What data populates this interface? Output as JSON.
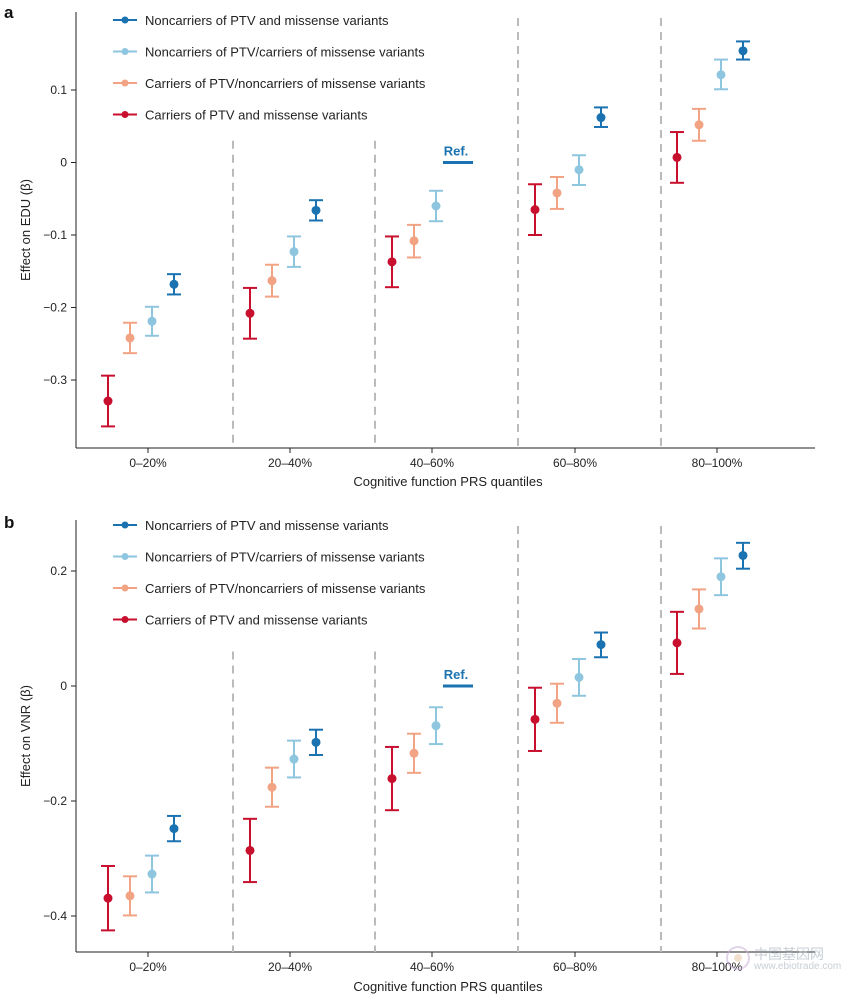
{
  "colors": {
    "noncarriers_both": "#1a73b0",
    "noncarriers_ptv_carriers_missense": "#8ec6e0",
    "carriers_ptv_noncarriers_missense": "#f2a383",
    "carriers_both": "#c8102e",
    "divider": "#bbbbbb",
    "axis": "#222222"
  },
  "watermark": {
    "cn": "中国基因网",
    "en": "www.ebiotrade.com",
    "logo": "logo-icon"
  },
  "chart_data": [
    {
      "panel_label": "a",
      "type": "scatter",
      "subtype": "dot-with-errorbars",
      "xlabel": "Cognitive function PRS quantiles",
      "ylabel": "Effect on EDU (β)",
      "categories": [
        "0–20%",
        "20–40%",
        "40–60%",
        "60–80%",
        "80–100%"
      ],
      "yticks": [
        0.1,
        0,
        -0.1,
        -0.2,
        -0.3
      ],
      "ytick_labels": [
        "0.1",
        "0",
        "−0.1",
        "−0.2",
        "−0.3"
      ],
      "ylim": [
        -0.39,
        0.19
      ],
      "grid": false,
      "legend_position": "top-left",
      "reference": {
        "label": "Ref.",
        "category_index": 2,
        "series_index": 0,
        "value": 0
      },
      "series": [
        {
          "name": "Noncarriers of PTV and missense variants",
          "color_key": "noncarriers_both",
          "values": [
            -0.168,
            -0.066,
            null,
            0.062,
            0.154
          ],
          "lower": [
            -0.182,
            -0.08,
            null,
            0.049,
            0.142
          ],
          "upper": [
            -0.154,
            -0.052,
            null,
            0.076,
            0.167
          ]
        },
        {
          "name": "Noncarriers of PTV/carriers of missense variants",
          "color_key": "noncarriers_ptv_carriers_missense",
          "values": [
            -0.219,
            -0.123,
            -0.06,
            -0.01,
            0.121
          ],
          "lower": [
            -0.239,
            -0.144,
            -0.081,
            -0.031,
            0.101
          ],
          "upper": [
            -0.199,
            -0.102,
            -0.039,
            0.01,
            0.142
          ]
        },
        {
          "name": "Carriers of PTV/noncarriers of missense variants",
          "color_key": "carriers_ptv_noncarriers_missense",
          "values": [
            -0.242,
            -0.163,
            -0.108,
            -0.042,
            0.052
          ],
          "lower": [
            -0.263,
            -0.185,
            -0.131,
            -0.064,
            0.03
          ],
          "upper": [
            -0.221,
            -0.141,
            -0.086,
            -0.02,
            0.074
          ]
        },
        {
          "name": "Carriers of PTV and missense variants",
          "color_key": "carriers_both",
          "values": [
            -0.329,
            -0.208,
            -0.137,
            -0.065,
            0.007
          ],
          "lower": [
            -0.364,
            -0.243,
            -0.172,
            -0.1,
            -0.028
          ],
          "upper": [
            -0.294,
            -0.173,
            -0.102,
            -0.03,
            0.042
          ]
        }
      ]
    },
    {
      "panel_label": "b",
      "type": "scatter",
      "subtype": "dot-with-errorbars",
      "xlabel": "Cognitive function PRS quantiles",
      "ylabel": "Effect on VNR (β)",
      "categories": [
        "0–20%",
        "20–40%",
        "40–60%",
        "60–80%",
        "80–100%"
      ],
      "yticks": [
        0.2,
        0,
        -0.2,
        -0.4
      ],
      "ytick_labels": [
        "0.2",
        "0",
        "−0.2",
        "−0.4"
      ],
      "ylim": [
        -0.455,
        0.285
      ],
      "grid": false,
      "legend_position": "top-left",
      "reference": {
        "label": "Ref.",
        "category_index": 2,
        "series_index": 0,
        "value": 0
      },
      "series": [
        {
          "name": "Noncarriers of PTV and missense variants",
          "color_key": "noncarriers_both",
          "values": [
            -0.248,
            -0.098,
            null,
            0.072,
            0.227
          ],
          "lower": [
            -0.27,
            -0.12,
            null,
            0.05,
            0.204
          ],
          "upper": [
            -0.226,
            -0.076,
            null,
            0.093,
            0.249
          ]
        },
        {
          "name": "Noncarriers of PTV/carriers of missense variants",
          "color_key": "noncarriers_ptv_carriers_missense",
          "values": [
            -0.327,
            -0.127,
            -0.069,
            0.015,
            0.19
          ],
          "lower": [
            -0.359,
            -0.159,
            -0.101,
            -0.017,
            0.158
          ],
          "upper": [
            -0.295,
            -0.095,
            -0.037,
            0.047,
            0.222
          ]
        },
        {
          "name": "Carriers of PTV/noncarriers of missense variants",
          "color_key": "carriers_ptv_noncarriers_missense",
          "values": [
            -0.365,
            -0.176,
            -0.117,
            -0.03,
            0.134
          ],
          "lower": [
            -0.399,
            -0.21,
            -0.151,
            -0.064,
            0.1
          ],
          "upper": [
            -0.331,
            -0.142,
            -0.083,
            0.004,
            0.168
          ]
        },
        {
          "name": "Carriers of PTV and missense variants",
          "color_key": "carriers_both",
          "values": [
            -0.369,
            -0.286,
            -0.161,
            -0.058,
            0.075
          ],
          "lower": [
            -0.425,
            -0.341,
            -0.216,
            -0.113,
            0.021
          ],
          "upper": [
            -0.313,
            -0.231,
            -0.106,
            -0.003,
            0.129
          ]
        }
      ]
    }
  ]
}
